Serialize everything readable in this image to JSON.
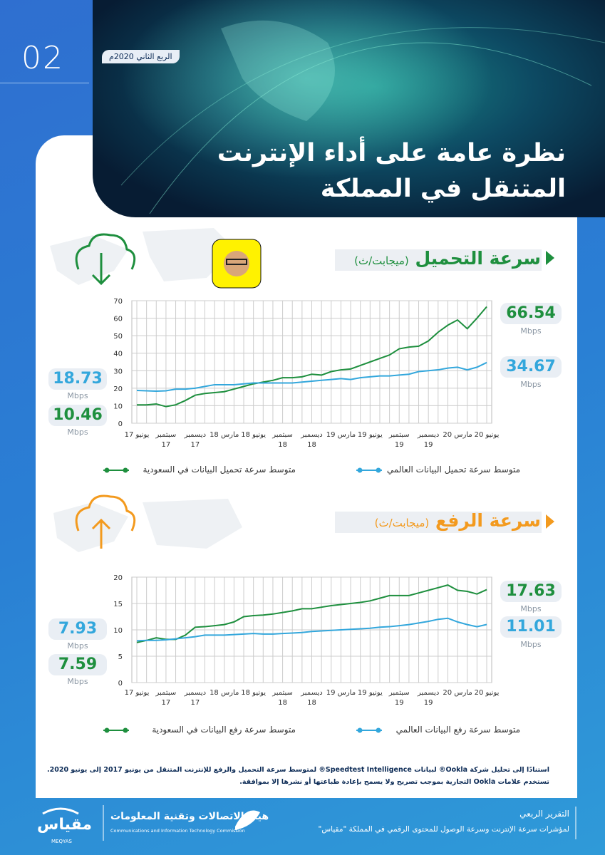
{
  "header": {
    "page_number": "02",
    "period": "الربع الثاني 2020م",
    "title": [
      "نظرة عامة على أداء الإنترنت",
      "المتنقل في المملكة"
    ]
  },
  "chart_data": [
    {
      "type": "line",
      "title": "سرعة التحميل",
      "subtitle": "(ميجابت/ث)",
      "unit_label": "Mbps",
      "categories": [
        "يونيو 17",
        null,
        null,
        "سبتمبر 17",
        null,
        null,
        "ديسمبر 17",
        null,
        null,
        "مارس 18",
        null,
        null,
        "يونيو 18",
        null,
        null,
        "سبتمبر 18",
        null,
        null,
        "ديسمبر 18",
        null,
        null,
        "مارس 19",
        null,
        null,
        "يونيو 19",
        null,
        null,
        "سبتمبر 19",
        null,
        null,
        "ديسمبر 19",
        null,
        null,
        "مارس 20",
        null,
        null,
        "يونيو 20"
      ],
      "series": [
        {
          "name": "متوسط سرعة تحميل البيانات في السعودية",
          "color": "#1e8f3e",
          "values": [
            10.46,
            10.5,
            11,
            9.5,
            10.5,
            13,
            16,
            17,
            17.5,
            18,
            19.5,
            21,
            22.5,
            23.5,
            24.5,
            26,
            26,
            26.5,
            28,
            27.5,
            29.5,
            30.5,
            31,
            33,
            35,
            37,
            39,
            42.5,
            43.5,
            44,
            47,
            52,
            56,
            59,
            54,
            60,
            66.54
          ]
        },
        {
          "name": "متوسط سرعة تحميل البيانات العالمي",
          "color": "#33a7dc",
          "values": [
            18.73,
            18.5,
            18.3,
            18.5,
            19.5,
            19.5,
            20,
            21,
            22,
            22,
            22,
            22.5,
            23,
            23,
            23,
            23,
            23,
            23.5,
            24,
            24.5,
            25,
            25.5,
            25,
            26,
            26.5,
            27,
            27,
            27.5,
            28,
            29.5,
            30,
            30.5,
            31.5,
            32,
            30.5,
            32,
            34.67
          ]
        }
      ],
      "ylim": [
        0,
        70
      ],
      "yticks": [
        0,
        10,
        20,
        30,
        40,
        50,
        60,
        70
      ],
      "grid": true,
      "accent": "#1e8f3e"
    },
    {
      "type": "line",
      "title": "سرعة الرفع",
      "subtitle": "(ميجابت/ث)",
      "unit_label": "Mbps",
      "categories": [
        "يونيو 17",
        null,
        null,
        "سبتمبر 17",
        null,
        null,
        "ديسمبر 17",
        null,
        null,
        "مارس 18",
        null,
        null,
        "يونيو 18",
        null,
        null,
        "سبتمبر 18",
        null,
        null,
        "ديسمبر 18",
        null,
        null,
        "مارس 19",
        null,
        null,
        "يونيو 19",
        null,
        null,
        "سبتمبر 19",
        null,
        null,
        "ديسمبر 19",
        null,
        null,
        "مارس 20",
        null,
        null,
        "يونيو 20"
      ],
      "series": [
        {
          "name": "متوسط سرعة رفع البيانات في السعودية",
          "color": "#1e8f3e",
          "values": [
            7.59,
            8,
            8.5,
            8.2,
            8.2,
            9,
            10.5,
            10.6,
            10.8,
            11,
            11.5,
            12.5,
            12.7,
            12.8,
            13,
            13.3,
            13.6,
            14,
            14,
            14.3,
            14.6,
            14.8,
            15,
            15.2,
            15.5,
            16,
            16.5,
            16.5,
            16.5,
            17,
            17.5,
            18,
            18.5,
            17.5,
            17.3,
            16.8,
            17.63
          ]
        },
        {
          "name": "متوسط سرعة رفع البيانات العالمي",
          "color": "#33a7dc",
          "values": [
            7.93,
            8,
            8,
            8.1,
            8.3,
            8.5,
            8.7,
            9,
            9,
            9,
            9.1,
            9.2,
            9.3,
            9.2,
            9.2,
            9.3,
            9.4,
            9.5,
            9.7,
            9.8,
            9.9,
            10,
            10.1,
            10.2,
            10.3,
            10.5,
            10.6,
            10.8,
            11,
            11.3,
            11.6,
            12,
            12.2,
            11.5,
            11,
            10.6,
            11.01
          ]
        }
      ],
      "ylim": [
        0,
        20
      ],
      "yticks": [
        0,
        5,
        10,
        15,
        20
      ],
      "grid": true,
      "accent": "#f39a1e"
    }
  ],
  "footnote": [
    "استنادًا إلى تحليل شركة Ookla® لبيانات Speedtest Intelligence® لمتوسط سرعة التحميل والرفع للإنترنت المتنقل من يونيو 2017 إلى يونيو 2020.",
    "تستخدم علامات Ookla التجارية بموجب تصريح ولا يسمح بإعادة طباعتها أو نشرها إلا بموافقة."
  ],
  "footer": {
    "report": "التقرير الربعي",
    "description": "لمؤشرات سرعة الإنترنت وسرعة الوصول للمحتوى الرقمي في المملكة \"مقياس\"",
    "brand": "مقياس",
    "brand_latin": "MEQYAS",
    "authority": "هيئة الاتصالات وتقنية المعلومات",
    "authority_latin": "Communications and Information Technology Commission"
  }
}
